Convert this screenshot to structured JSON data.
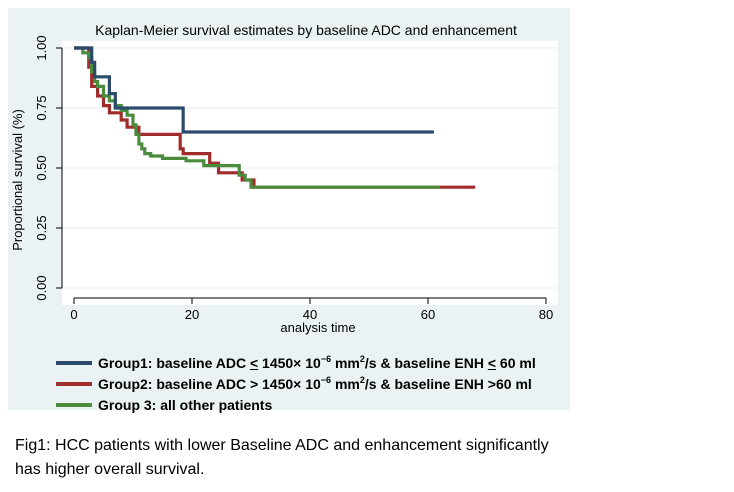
{
  "chart_data": {
    "type": "line",
    "subtype": "step",
    "title": "Kaplan-Meier survival estimates by baseline ADC and enhancement",
    "xlabel": "analysis time",
    "ylabel": "Proportional survival (%)",
    "xlim": [
      0,
      80
    ],
    "ylim": [
      0,
      1
    ],
    "xticks": [
      0,
      20,
      40,
      60,
      80
    ],
    "xtick_labels": [
      "0",
      "20",
      "40",
      "60",
      "80"
    ],
    "yticks": [
      0,
      0.25,
      0.5,
      0.75,
      1.0
    ],
    "ytick_labels": [
      "0.00",
      "0.25",
      "0.50",
      "0.75",
      "1.00"
    ],
    "grid": "horizontal",
    "series": [
      {
        "name": "Group1: baseline ADC ≤ 1450× 10⁻⁶ mm²/s & baseline ENH ≤ 60 ml",
        "color": "#2c4a6b",
        "x": [
          0,
          3,
          3.5,
          4.5,
          6,
          7,
          18.5,
          61
        ],
        "y": [
          1.0,
          0.94,
          0.88,
          0.88,
          0.81,
          0.75,
          0.65,
          0.65
        ]
      },
      {
        "name": "Group2: baseline ADC > 1450× 10⁻⁶ mm²/s & baseline ENH >60 ml",
        "color": "#a02c2c",
        "x": [
          0,
          2.5,
          3,
          4,
          5,
          6,
          8,
          9,
          11,
          18,
          18.5,
          23,
          24.5,
          28.5,
          30.5,
          68
        ],
        "y": [
          1.0,
          0.92,
          0.84,
          0.8,
          0.76,
          0.73,
          0.7,
          0.67,
          0.64,
          0.58,
          0.56,
          0.52,
          0.48,
          0.45,
          0.42,
          0.42
        ]
      },
      {
        "name": "Group 3: all other patients",
        "color": "#4a8b3c",
        "x": [
          0,
          1.5,
          2.5,
          3,
          3.5,
          4,
          5,
          6,
          7,
          8,
          9,
          10,
          10.5,
          11,
          11.5,
          12,
          13,
          15,
          18,
          19,
          22,
          28,
          29,
          30,
          62
        ],
        "y": [
          1.0,
          0.98,
          0.96,
          0.9,
          0.86,
          0.84,
          0.8,
          0.78,
          0.76,
          0.74,
          0.72,
          0.68,
          0.64,
          0.6,
          0.58,
          0.56,
          0.55,
          0.54,
          0.54,
          0.53,
          0.51,
          0.47,
          0.45,
          0.42,
          0.42
        ]
      }
    ]
  },
  "legend": {
    "g1": {
      "pre": "Group1: baseline ADC ",
      "le": "<",
      "mid": " 1450× 10",
      "sup1": "−6",
      "mid2": " mm",
      "sup2": "2",
      "post": "/s & baseline ENH ",
      "le2": "<",
      "end": " 60 ml"
    },
    "g2": {
      "pre": "Group2: baseline ADC > 1450× 10",
      "sup1": "−6",
      "mid2": " mm",
      "sup2": "2",
      "post": "/s & baseline ENH >60 ml"
    },
    "g3": {
      "label": "Group 3: all other patients"
    }
  },
  "caption": {
    "line1": "Fig1: HCC patients with lower Baseline ADC and enhancement significantly",
    "line2": "has higher overall survival."
  }
}
